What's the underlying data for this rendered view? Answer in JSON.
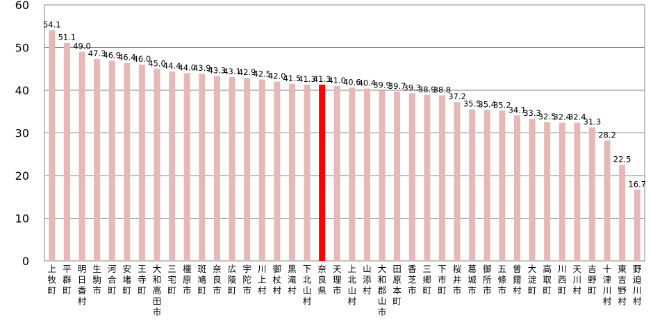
{
  "chart_data": {
    "type": "bar",
    "categories": [
      "上牧町",
      "平群町",
      "明日香村",
      "生駒市",
      "河合町",
      "安堵町",
      "王寺町",
      "大和高田市",
      "三宅町",
      "橿原市",
      "斑鳩町",
      "奈良市",
      "広陵町",
      "宇陀市",
      "川上村",
      "御杖村",
      "黒滝村",
      "下北山村",
      "奈良県",
      "天理市",
      "上北山村",
      "山添村",
      "大和郡山市",
      "田原本町",
      "香芝市",
      "三郷町",
      "下市町",
      "桜井市",
      "葛城市",
      "御所市",
      "五條市",
      "曽爾村",
      "大淀町",
      "高取町",
      "川西町",
      "天川村",
      "吉野町",
      "十津川村",
      "東吉野村",
      "野迫川村"
    ],
    "values": [
      54.1,
      51.1,
      49.0,
      47.3,
      46.9,
      46.4,
      46.0,
      45.0,
      44.4,
      44.0,
      43.9,
      43.3,
      43.1,
      42.9,
      42.5,
      42.0,
      41.5,
      41.3,
      41.3,
      41.0,
      40.6,
      40.4,
      39.9,
      39.7,
      39.3,
      38.9,
      38.8,
      37.2,
      35.5,
      35.4,
      35.2,
      34.1,
      33.3,
      32.5,
      32.4,
      32.4,
      31.3,
      28.2,
      22.5,
      16.7
    ],
    "data_labels": [
      "54.1",
      "51.1",
      "49.0",
      "47.3",
      "46.9",
      "46.4",
      "46.0",
      "45.0",
      "44.4",
      "44.0",
      "43.9",
      "43.3",
      "43.1",
      "42.9",
      "42.5",
      "42.0",
      "41.5",
      "41.3",
      "41.3",
      "41.0",
      "40.6",
      "40.4",
      "39.9",
      "39.7",
      "39.3",
      "38.9",
      "38.8",
      "37.2",
      "35.5",
      "35.4",
      "35.2",
      "34.1",
      "33.3",
      "32.5",
      "32.4",
      "32.4",
      "31.3",
      "28.2",
      "22.5",
      "16.7"
    ],
    "highlight_category": "奈良県",
    "ylim": [
      0,
      60
    ],
    "yticks": [
      "0",
      "10",
      "20",
      "30",
      "40",
      "50",
      "60"
    ],
    "grid": true,
    "colors": {
      "bar": "#e6b8b7",
      "highlight": "#ff0000",
      "grid": "#868686",
      "axis": "#868686"
    }
  }
}
